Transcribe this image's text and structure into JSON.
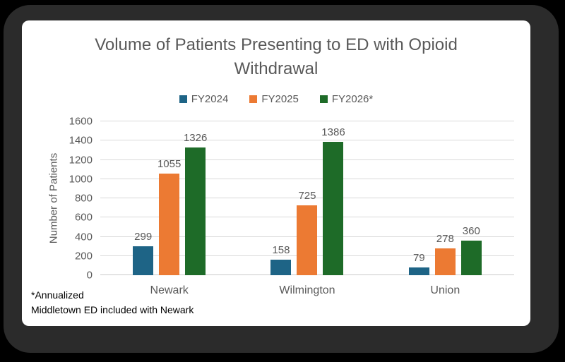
{
  "chart_data": {
    "type": "bar",
    "title": "Volume of Patients Presenting to ED with Opioid Withdrawal",
    "categories": [
      "Newark",
      "Wilmington",
      "Union"
    ],
    "series": [
      {
        "name": "FY2024",
        "color": "#1E6486",
        "values": [
          299,
          158,
          79
        ]
      },
      {
        "name": "FY2025",
        "color": "#EC7A33",
        "values": [
          1055,
          725,
          278
        ]
      },
      {
        "name": "FY2026*",
        "color": "#1E6B28",
        "values": [
          1326,
          1386,
          360
        ]
      }
    ],
    "xlabel": "",
    "ylabel": "Number of Patients",
    "ylim": [
      0,
      1600
    ],
    "ytick_step": 200,
    "grid": true,
    "legend_position": "top",
    "colors": {
      "title_text": "#595959",
      "axis_text": "#595959",
      "data_label_text": "#595959",
      "gridline": "#D9D9D9",
      "card_background": "#FFFFFF",
      "frame": "#2B2B2B"
    }
  },
  "footnote": {
    "line1": "*Annualized",
    "line2": "Middletown ED included with Newark"
  }
}
